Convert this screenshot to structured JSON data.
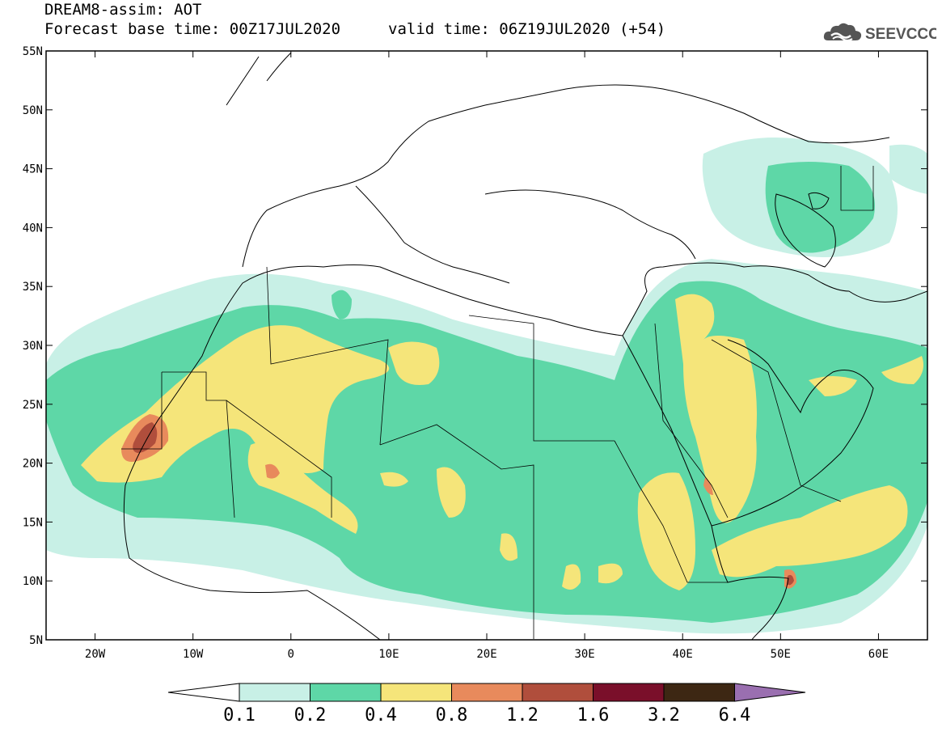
{
  "header": {
    "title": "DREAM8-assim: AOT",
    "base_time": "Forecast base time: 00Z17JUL2020",
    "valid_time": "valid time: 06Z19JUL2020 (+54)",
    "logo_text": "SEEVCCC"
  },
  "map": {
    "lon_range": [
      -25,
      65
    ],
    "lat_range": [
      5,
      55
    ],
    "lat_ticks": [
      "55N",
      "50N",
      "45N",
      "40N",
      "35N",
      "30N",
      "25N",
      "20N",
      "15N",
      "10N",
      "5N"
    ],
    "lon_ticks": [
      "20W",
      "10W",
      "0",
      "10E",
      "20E",
      "30E",
      "40E",
      "50E",
      "60E"
    ]
  },
  "colorbar": {
    "levels": [
      "0.1",
      "0.2",
      "0.4",
      "0.8",
      "1.2",
      "1.6",
      "3.2",
      "6.4"
    ],
    "colors": [
      "#ffffff",
      "#c8f0e6",
      "#5ed7a7",
      "#f5e57a",
      "#e88a5c",
      "#b04e3c",
      "#7a0f2a",
      "#3d2713",
      "#9a6fb0"
    ]
  },
  "colors": {
    "c01": "#c8f0e6",
    "c02": "#5ed7a7",
    "c04": "#f5e57a",
    "c08": "#e88a5c",
    "c12": "#b04e3c"
  }
}
